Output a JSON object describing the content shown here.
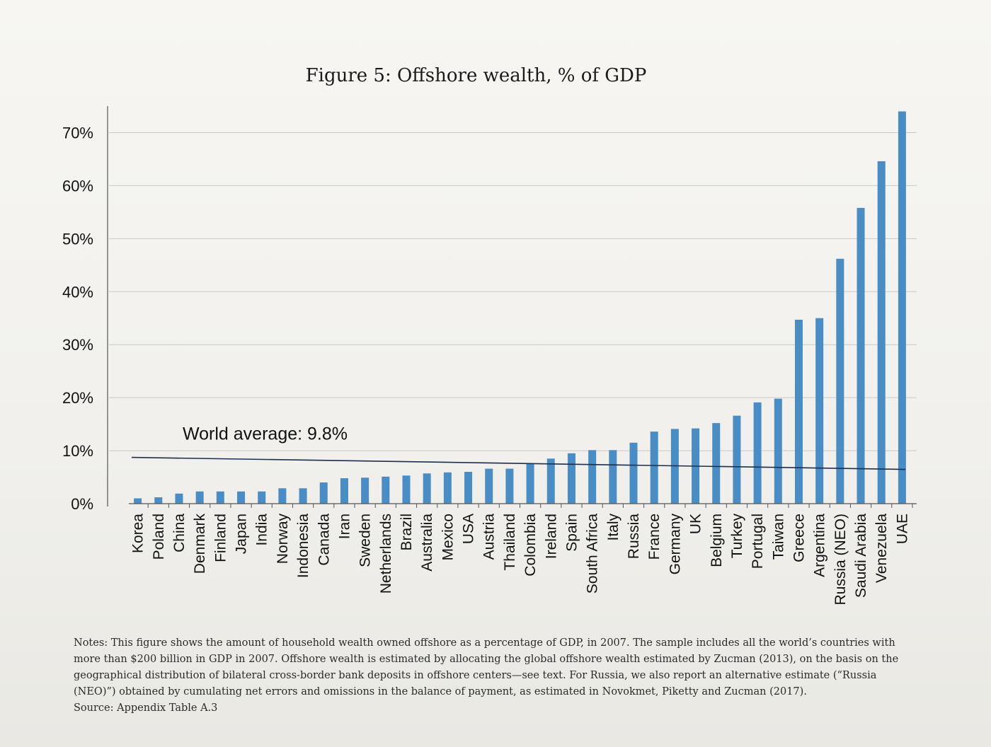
{
  "figure": {
    "title": "Figure 5: Offshore wealth, % of GDP"
  },
  "chart_data": {
    "type": "bar",
    "title": "Figure 5: Offshore wealth, % of GDP",
    "xlabel": "",
    "ylabel": "",
    "ylim": [
      0,
      75
    ],
    "yticks": [
      0,
      10,
      20,
      30,
      40,
      50,
      60,
      70
    ],
    "ytick_labels": [
      "0%",
      "10%",
      "20%",
      "30%",
      "40%",
      "50%",
      "60%",
      "70%"
    ],
    "grid": true,
    "bar_color": "#4a8cc4",
    "categories": [
      "Korea",
      "Poland",
      "China",
      "Denmark",
      "Finland",
      "Japan",
      "India",
      "Norway",
      "Indonesia",
      "Canada",
      "Iran",
      "Sweden",
      "Netherlands",
      "Brazil",
      "Australia",
      "Mexico",
      "USA",
      "Austria",
      "Thailand",
      "Colombia",
      "Ireland",
      "Spain",
      "South Africa",
      "Italy",
      "Russia",
      "France",
      "Germany",
      "UK",
      "Belgium",
      "Turkey",
      "Portugal",
      "Taiwan",
      "Greece",
      "Argentina",
      "Russia (NEO)",
      "Saudi Arabia",
      "Venezuela",
      "UAE"
    ],
    "values": [
      1.0,
      1.2,
      1.9,
      2.3,
      2.3,
      2.3,
      2.3,
      2.9,
      2.9,
      4.0,
      4.8,
      4.9,
      5.1,
      5.3,
      5.7,
      5.9,
      6.0,
      6.6,
      6.6,
      7.6,
      8.5,
      9.5,
      10.1,
      10.1,
      11.5,
      13.6,
      14.1,
      14.2,
      15.2,
      16.6,
      19.1,
      19.8,
      34.7,
      35.0,
      46.2,
      55.8,
      64.6,
      74.0
    ],
    "annotations": [
      {
        "text": "World average: 9.8%",
        "value": 9.8
      }
    ]
  },
  "notes": {
    "text": "Notes: This figure shows the amount of household wealth owned offshore as a percentage of GDP, in 2007. The sample includes all the world’s countries with more than $200 billion in GDP in 2007. Offshore wealth is estimated by allocating the global offshore wealth estimated by Zucman (2013), on the basis on the geographical distribution of bilateral cross-border bank deposits in offshore centers—see text. For Russia, we also report an alternative estimate (“Russia (NEO)”) obtained by cumulating net errors and omissions in the balance of payment, as estimated in Novokmet, Piketty and Zucman (2017).",
    "source": "Source: Appendix Table A.3"
  }
}
